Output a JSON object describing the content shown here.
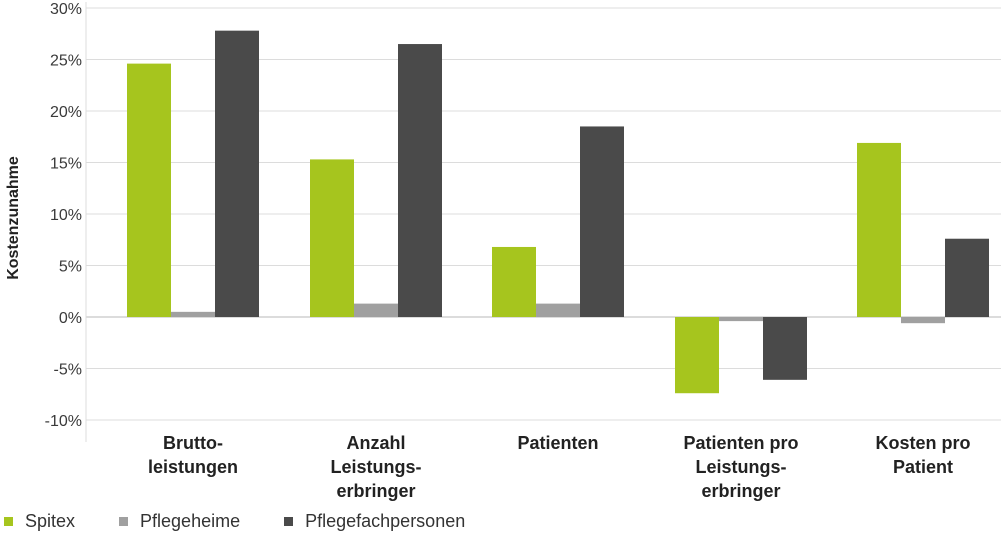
{
  "chart_data": {
    "type": "bar",
    "ylabel": "Kostenzunahme",
    "ylim": [
      -10,
      30
    ],
    "yticks": [
      -10,
      -5,
      0,
      5,
      10,
      15,
      20,
      25,
      30
    ],
    "ytick_labels": [
      "-10%",
      "-5%",
      "0%",
      "5%",
      "10%",
      "15%",
      "20%",
      "25%",
      "30%"
    ],
    "grid": "horizontal",
    "legend_position": "bottom-left",
    "categories": [
      [
        "Brutto-",
        "leistungen"
      ],
      [
        "Anzahl",
        "Leistungs-",
        "erbringer"
      ],
      [
        "Patienten"
      ],
      [
        "Patienten pro",
        "Leistungs-",
        "erbringer"
      ],
      [
        "Kosten pro",
        "Patient"
      ]
    ],
    "series": [
      {
        "name": "Spitex",
        "color": "#a6c51e",
        "values": [
          24.6,
          15.3,
          6.8,
          -7.4,
          16.9
        ]
      },
      {
        "name": "Pflegeheime",
        "color": "#a0a0a0",
        "values": [
          0.5,
          1.3,
          1.3,
          -0.4,
          -0.6
        ]
      },
      {
        "name": "Pflegefachpersonen",
        "color": "#4a4a4a",
        "values": [
          27.8,
          26.5,
          18.5,
          -6.1,
          7.6
        ]
      }
    ]
  }
}
